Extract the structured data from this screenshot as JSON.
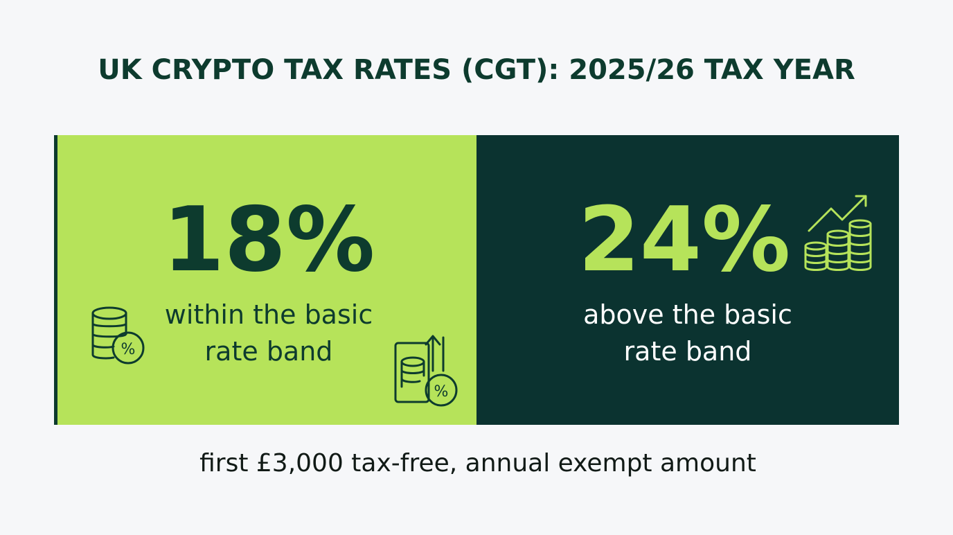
{
  "header": {
    "title": "UK CRYPTO TAX RATES (CGT): 2025/26 TAX YEAR"
  },
  "panels": [
    {
      "rate": "18%",
      "description": [
        "within the basic",
        "rate band"
      ]
    },
    {
      "rate": "24%",
      "description": [
        "above the basic",
        "rate band"
      ]
    }
  ],
  "footer": {
    "note": "first £3,000 tax-free, annual exempt amount"
  }
}
